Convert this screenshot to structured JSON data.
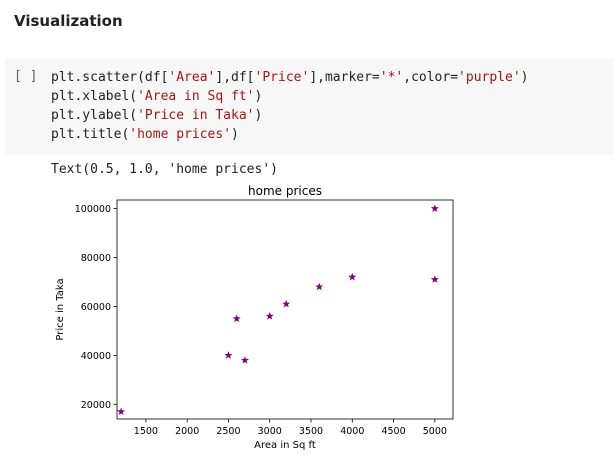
{
  "section": {
    "title": "Visualization"
  },
  "cell": {
    "run_label": "[ ]",
    "code_lines": [
      [
        {
          "t": "plt.scatter(df[",
          "c": "plain"
        },
        {
          "t": "'Area'",
          "c": "str"
        },
        {
          "t": "],df[",
          "c": "plain"
        },
        {
          "t": "'Price'",
          "c": "str"
        },
        {
          "t": "],marker=",
          "c": "plain"
        },
        {
          "t": "'*'",
          "c": "str"
        },
        {
          "t": ",color=",
          "c": "plain"
        },
        {
          "t": "'purple'",
          "c": "str"
        },
        {
          "t": ")",
          "c": "plain"
        }
      ],
      [
        {
          "t": "plt.xlabel(",
          "c": "plain"
        },
        {
          "t": "'Area in Sq ft'",
          "c": "str"
        },
        {
          "t": ")",
          "c": "plain"
        }
      ],
      [
        {
          "t": "plt.ylabel(",
          "c": "plain"
        },
        {
          "t": "'Price in Taka'",
          "c": "str"
        },
        {
          "t": ")",
          "c": "plain"
        }
      ],
      [
        {
          "t": "plt.title(",
          "c": "plain"
        },
        {
          "t": "'home prices'",
          "c": "str"
        },
        {
          "t": ")",
          "c": "plain"
        }
      ]
    ],
    "output_text": "Text(0.5, 1.0, 'home prices')"
  },
  "colors": {
    "marker": "#800080",
    "string": "#a31515",
    "cell_background": "#f7f7f7"
  },
  "chart_data": {
    "type": "scatter",
    "title": "home prices",
    "xlabel": "Area in Sq ft",
    "ylabel": "Price in Taka",
    "marker": "*",
    "color": "purple",
    "xlim": [
      1150,
      5220
    ],
    "ylim": [
      14000,
      103500
    ],
    "xticks": [
      1500,
      2000,
      2500,
      3000,
      3500,
      4000,
      4500,
      5000
    ],
    "yticks": [
      20000,
      40000,
      60000,
      80000,
      100000
    ],
    "grid": false,
    "points": [
      {
        "x": 1200,
        "y": 17000
      },
      {
        "x": 2500,
        "y": 40000
      },
      {
        "x": 2600,
        "y": 55000
      },
      {
        "x": 2700,
        "y": 38000
      },
      {
        "x": 3000,
        "y": 56000
      },
      {
        "x": 3200,
        "y": 61000
      },
      {
        "x": 3600,
        "y": 68000
      },
      {
        "x": 4000,
        "y": 72000
      },
      {
        "x": 5000,
        "y": 100000
      },
      {
        "x": 5000,
        "y": 71000
      }
    ]
  }
}
